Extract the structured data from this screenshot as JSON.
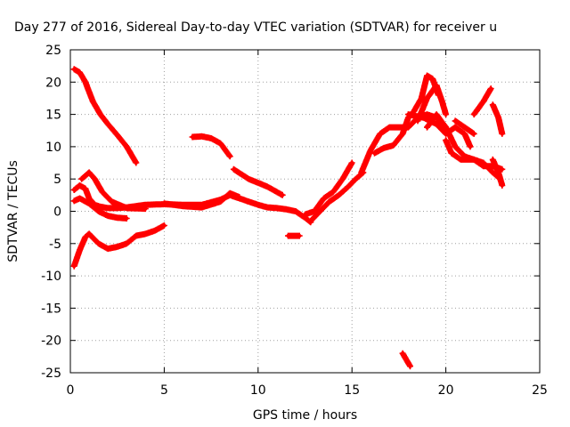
{
  "chart_data": {
    "type": "scatter",
    "title": "Day 277 of 2016, Sidereal Day-to-day VTEC variation (SDTVAR) for receiver u",
    "xlabel": "GPS time / hours",
    "ylabel": "SDTVAR / TECUs",
    "xlim": [
      0,
      25
    ],
    "ylim": [
      -25,
      25
    ],
    "x_ticks": [
      "0",
      "5",
      "10",
      "15",
      "20",
      "25"
    ],
    "y_ticks": [
      "25",
      "20",
      "15",
      "10",
      "5",
      "0",
      "-5",
      "-10",
      "-15",
      "-20",
      "-25"
    ],
    "grid": true,
    "legend": "none",
    "marker_color": "#ff0000",
    "series": [
      {
        "points": [
          [
            0.2,
            22
          ],
          [
            0.5,
            21.5
          ],
          [
            0.8,
            20
          ],
          [
            1.2,
            17
          ],
          [
            1.6,
            15
          ],
          [
            2.0,
            13.5
          ],
          [
            2.5,
            11.8
          ],
          [
            3.0,
            10
          ],
          [
            3.5,
            7.5
          ]
        ]
      },
      {
        "points": [
          [
            0.2,
            3.3
          ],
          [
            0.5,
            4.0
          ],
          [
            0.8,
            3.5
          ],
          [
            1.0,
            2.0
          ],
          [
            1.3,
            1.0
          ],
          [
            1.6,
            0.7
          ],
          [
            2.0,
            0.5
          ],
          [
            2.5,
            0.5
          ],
          [
            3.0,
            0.6
          ],
          [
            3.5,
            0.8
          ],
          [
            4.0,
            1.0
          ],
          [
            5.0,
            1.1
          ],
          [
            6.0,
            1.0
          ],
          [
            7.0,
            1.0
          ],
          [
            8.0,
            1.8
          ],
          [
            8.5,
            2.5
          ],
          [
            9.0,
            2.0
          ],
          [
            9.5,
            1.5
          ],
          [
            10.0,
            1.0
          ],
          [
            10.5,
            0.6
          ],
          [
            11.0,
            0.5
          ],
          [
            11.5,
            0.3
          ],
          [
            12.0,
            0.0
          ],
          [
            12.5,
            -1.0
          ],
          [
            12.8,
            -1.7
          ]
        ]
      },
      {
        "points": [
          [
            0.2,
            1.6
          ],
          [
            0.5,
            2.0
          ],
          [
            1.0,
            1.2
          ],
          [
            1.5,
            0.0
          ],
          [
            2.0,
            -0.7
          ],
          [
            2.5,
            -1.0
          ],
          [
            3.0,
            -1.1
          ]
        ]
      },
      {
        "points": [
          [
            0.6,
            5.0
          ],
          [
            1.0,
            6.0
          ],
          [
            1.3,
            5.0
          ],
          [
            1.7,
            3.0
          ],
          [
            2.2,
            1.5
          ],
          [
            3.0,
            0.5
          ],
          [
            4.0,
            0.4
          ]
        ]
      },
      {
        "points": [
          [
            0.2,
            -8.5
          ],
          [
            0.5,
            -6.0
          ],
          [
            0.8,
            -4.0
          ],
          [
            1.0,
            -3.5
          ],
          [
            1.5,
            -5.0
          ],
          [
            2.0,
            -5.8
          ],
          [
            2.5,
            -5.5
          ],
          [
            3.0,
            -5.0
          ],
          [
            3.5,
            -3.8
          ],
          [
            4.0,
            -3.5
          ],
          [
            4.5,
            -3.0
          ],
          [
            5.0,
            -2.2
          ]
        ]
      },
      {
        "points": [
          [
            5.0,
            1.2
          ],
          [
            6.0,
            0.8
          ],
          [
            7.0,
            0.6
          ],
          [
            8.0,
            1.5
          ],
          [
            8.5,
            2.8
          ],
          [
            9.0,
            2.2
          ]
        ]
      },
      {
        "points": [
          [
            6.5,
            11.5
          ],
          [
            7.0,
            11.6
          ],
          [
            7.5,
            11.3
          ],
          [
            8.0,
            10.5
          ],
          [
            8.5,
            8.5
          ]
        ]
      },
      {
        "points": [
          [
            8.7,
            6.5
          ],
          [
            9.5,
            5.0
          ],
          [
            10.5,
            3.8
          ],
          [
            11.3,
            2.5
          ]
        ]
      },
      {
        "points": [
          [
            11.6,
            -3.8
          ],
          [
            12.2,
            -3.8
          ]
        ]
      },
      {
        "points": [
          [
            12.5,
            -0.5
          ],
          [
            13.0,
            0.0
          ],
          [
            13.5,
            2.0
          ],
          [
            14.0,
            3.0
          ],
          [
            14.5,
            5.0
          ],
          [
            15.0,
            7.5
          ]
        ]
      },
      {
        "points": [
          [
            12.8,
            -1.5
          ],
          [
            13.3,
            0.0
          ],
          [
            13.8,
            1.5
          ],
          [
            14.3,
            2.5
          ],
          [
            14.8,
            3.8
          ],
          [
            15.2,
            5.0
          ],
          [
            15.6,
            6.0
          ]
        ]
      },
      {
        "points": [
          [
            15.5,
            6.0
          ],
          [
            16.0,
            9.5
          ],
          [
            16.5,
            12.0
          ],
          [
            17.0,
            13.0
          ],
          [
            17.5,
            13.0
          ],
          [
            18.0,
            13.0
          ],
          [
            18.5,
            14.5
          ],
          [
            19.0,
            15.0
          ],
          [
            19.5,
            14.5
          ],
          [
            20.0,
            13.0
          ]
        ]
      },
      {
        "points": [
          [
            16.2,
            9.0
          ],
          [
            16.7,
            9.8
          ],
          [
            17.2,
            10.2
          ],
          [
            17.7,
            12.0
          ],
          [
            18.0,
            14.5
          ],
          [
            18.3,
            15.5
          ],
          [
            18.7,
            17.5
          ],
          [
            19.0,
            21.0
          ],
          [
            19.3,
            20.5
          ],
          [
            19.6,
            18.0
          ]
        ]
      },
      {
        "points": [
          [
            18.5,
            14.0
          ],
          [
            19.0,
            17.5
          ],
          [
            19.5,
            19.5
          ],
          [
            19.8,
            17.0
          ],
          [
            20.0,
            15.0
          ]
        ]
      },
      {
        "points": [
          [
            18.0,
            15.0
          ],
          [
            18.8,
            14.5
          ],
          [
            19.5,
            13.5
          ],
          [
            20.0,
            12.0
          ],
          [
            20.5,
            13.0
          ],
          [
            21.0,
            12.0
          ],
          [
            21.3,
            10.0
          ]
        ]
      },
      {
        "points": [
          [
            19.0,
            13.0
          ],
          [
            19.5,
            15.0
          ],
          [
            20.0,
            13.0
          ],
          [
            20.5,
            10.0
          ],
          [
            21.0,
            8.5
          ],
          [
            21.5,
            8.0
          ],
          [
            22.0,
            7.5
          ],
          [
            22.5,
            6.0
          ],
          [
            22.9,
            5.0
          ]
        ]
      },
      {
        "points": [
          [
            20.0,
            11.0
          ],
          [
            20.3,
            9.0
          ],
          [
            20.8,
            8.0
          ],
          [
            21.5,
            8.0
          ],
          [
            22.0,
            7.0
          ],
          [
            22.5,
            7.0
          ],
          [
            23.0,
            6.5
          ]
        ]
      },
      {
        "points": [
          [
            20.5,
            14.0
          ],
          [
            21.0,
            13.0
          ],
          [
            21.5,
            12.0
          ]
        ]
      },
      {
        "points": [
          [
            21.5,
            15.0
          ],
          [
            22.0,
            17.0
          ],
          [
            22.4,
            19.0
          ]
        ]
      },
      {
        "points": [
          [
            22.5,
            16.5
          ],
          [
            22.8,
            14.5
          ],
          [
            23.0,
            12.0
          ]
        ]
      },
      {
        "points": [
          [
            22.5,
            8.0
          ],
          [
            22.8,
            6.0
          ],
          [
            23.0,
            4.0
          ]
        ]
      },
      {
        "points": [
          [
            17.7,
            -22.0
          ],
          [
            18.1,
            -24.0
          ]
        ]
      }
    ]
  }
}
